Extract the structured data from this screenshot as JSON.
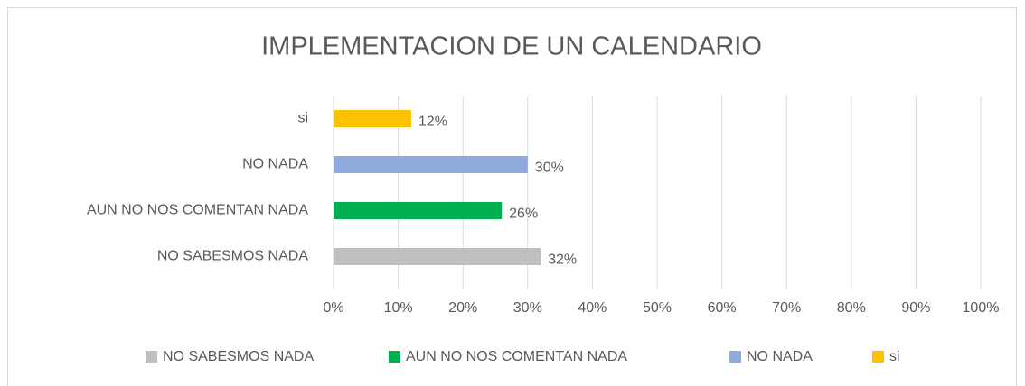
{
  "chart_data": {
    "type": "bar",
    "orientation": "horizontal",
    "title": "IMPLEMENTACION  DE UN CALENDARIO",
    "categories": [
      "NO SABESMOS NADA",
      "AUN NO NOS COMENTAN NADA",
      "NO NADA",
      "si"
    ],
    "series": [
      {
        "name": "NO SABESMOS NADA",
        "color": "#bfbfbf",
        "values": [
          32,
          null,
          null,
          null
        ],
        "value_labels": [
          "32%",
          null,
          null,
          null
        ]
      },
      {
        "name": "AUN NO NOS COMENTAN NADA",
        "color": "#00b050",
        "values": [
          null,
          26,
          null,
          null
        ],
        "value_labels": [
          null,
          "26%",
          null,
          null
        ]
      },
      {
        "name": "NO NADA",
        "color": "#8faadc",
        "values": [
          null,
          null,
          30,
          null
        ],
        "value_labels": [
          null,
          null,
          "30%",
          null
        ]
      },
      {
        "name": "si",
        "color": "#ffc000",
        "values": [
          null,
          null,
          null,
          12
        ],
        "value_labels": [
          null,
          null,
          null,
          "12%"
        ]
      }
    ],
    "xlim": [
      0,
      100
    ],
    "xticks": [
      {
        "value": 0,
        "label": "0%"
      },
      {
        "value": 10,
        "label": "10%"
      },
      {
        "value": 20,
        "label": "20%"
      },
      {
        "value": 30,
        "label": "30%"
      },
      {
        "value": 40,
        "label": "40%"
      },
      {
        "value": 50,
        "label": "50%"
      },
      {
        "value": 60,
        "label": "60%"
      },
      {
        "value": 70,
        "label": "70%"
      },
      {
        "value": 80,
        "label": "80%"
      },
      {
        "value": 90,
        "label": "90%"
      },
      {
        "value": 100,
        "label": "100%"
      }
    ],
    "grid": true,
    "legend": "bottom"
  }
}
